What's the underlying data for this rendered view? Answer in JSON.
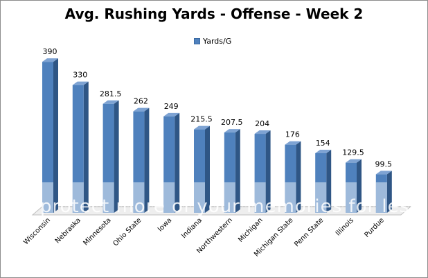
{
  "chart_data": {
    "type": "bar",
    "title": "Avg. Rushing Yards - Offense - Week 2",
    "legend": [
      "Yards/G"
    ],
    "legend_position": "top",
    "categories": [
      "Wisconsin",
      "Nebraska",
      "Minnesota",
      "Ohio State",
      "Iowa",
      "Indiana",
      "Northwestern",
      "Michigan",
      "Michigan State",
      "Penn State",
      "Illinois",
      "Purdue"
    ],
    "value_labels": [
      "390",
      "330",
      "281.5",
      "262",
      "249",
      "215.5",
      "207.5",
      "204",
      "176",
      "154",
      "129.5",
      "99.5"
    ],
    "series": [
      {
        "name": "Yards/G",
        "values": [
          390,
          330,
          281.5,
          262,
          249,
          215.5,
          207.5,
          204,
          176,
          154,
          129.5,
          99.5
        ]
      }
    ],
    "ylim": [
      0,
      410
    ],
    "grid": false,
    "colors": {
      "bar_front": "#4f81bd",
      "bar_side": "#2f5685",
      "bar_top": "#7ea3d3",
      "floor": "#d9d9d9"
    }
  },
  "watermark_text": "protect more of your memories for less!"
}
